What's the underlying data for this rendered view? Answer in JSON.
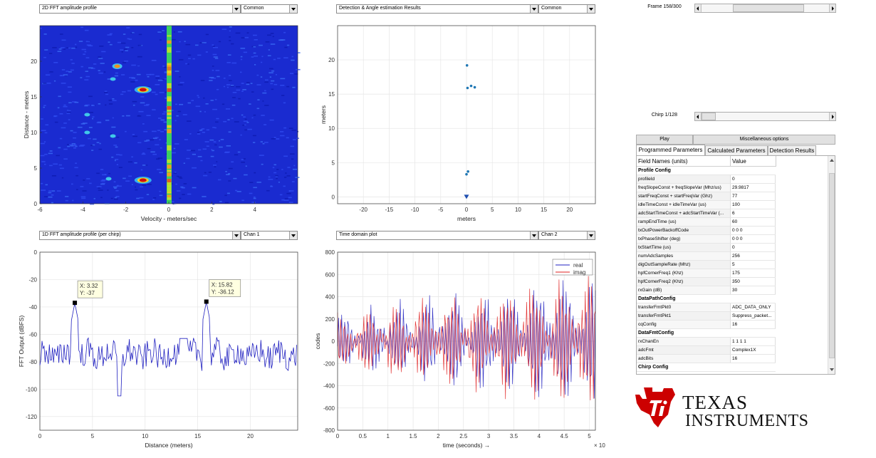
{
  "colors": {
    "accent_red": "#cc0000",
    "line_blue": "#2020c0",
    "line_red": "#e02020",
    "point_blue": "#1f77b4"
  },
  "panels": {
    "top_left": {
      "plot_select": "2D FFT amplitude profile",
      "scale_select": "Common"
    },
    "top_mid": {
      "plot_select": "Detection & Angle estimation Results",
      "scale_select": "Common"
    },
    "bottom_left": {
      "plot_select": "1D FFT amplitude profile (per chirp)",
      "chan_select": "Chan 1"
    },
    "bottom_mid": {
      "plot_select": "Time domain plot",
      "chan_select": "Chan 2"
    }
  },
  "controls": {
    "frame_label": "Frame 158/300",
    "frame_progress": 0.527,
    "chirp_label": "Chirp 1/128",
    "chirp_progress": 0.008,
    "play_button": "Play",
    "misc_button": "Miscellaneous options"
  },
  "tabs": [
    "Programmed Parameters",
    "Calculated Parameters",
    "Detection Results"
  ],
  "params_table": {
    "headers": [
      "Field Names   (units)",
      "Value"
    ],
    "rows": [
      {
        "name": "Profile Config",
        "value": "",
        "section": true
      },
      {
        "name": "profileId",
        "value": "0"
      },
      {
        "name": "freqSlopeConst + freqSlopeVar (Mhz/us)",
        "value": "29.9817"
      },
      {
        "name": "startFreqConst + startFreqVar (Ghz)",
        "value": "77"
      },
      {
        "name": "idleTimeConst + idleTimeVar (us)",
        "value": "100"
      },
      {
        "name": "adcStartTimeConst + adcStartTimeVar (...",
        "value": "6"
      },
      {
        "name": "rampEndTime (us)",
        "value": "60"
      },
      {
        "name": "txOutPowerBackoffCode",
        "value": "0 0 0"
      },
      {
        "name": "txPhaseShifter (deg)",
        "value": "0 0 0"
      },
      {
        "name": "txStartTime (us)",
        "value": "0"
      },
      {
        "name": "numAdcSamples",
        "value": "256"
      },
      {
        "name": "digOutSampleRate (Mhz)",
        "value": "5"
      },
      {
        "name": "hpfCornerFreq1 (Khz)",
        "value": "175"
      },
      {
        "name": "hpfCornerFreq2 (Khz)",
        "value": "350"
      },
      {
        "name": "rxGain (dB)",
        "value": "30"
      },
      {
        "name": "DataPathConfig",
        "value": "",
        "section": true
      },
      {
        "name": "transferFmtPkt0",
        "value": "ADC_DATA_ONLY"
      },
      {
        "name": "transferFmtPkt1",
        "value": "Suppress_packet..."
      },
      {
        "name": "cqConfig",
        "value": "16"
      },
      {
        "name": "DataFmtConfig",
        "value": "",
        "section": true
      },
      {
        "name": "rxChanEn",
        "value": "1 1 1 1"
      },
      {
        "name": "adcFmt",
        "value": "Complex1X"
      },
      {
        "name": "adcBits",
        "value": "16"
      },
      {
        "name": "Chirp Config",
        "value": "",
        "section": true
      }
    ]
  },
  "logo": {
    "line1": "TEXAS",
    "line2": "INSTRUMENTS"
  },
  "chart_data": [
    {
      "type": "heatmap",
      "xlabel": "Velocity - meters/sec",
      "ylabel": "Distance - meters",
      "x_ticks": [
        "-6",
        "-4",
        "-2",
        "0",
        "2",
        "4"
      ],
      "y_ticks": [
        "0",
        "5",
        "10",
        "15",
        "20"
      ],
      "xlim": [
        -6,
        6
      ],
      "ylim": [
        0,
        25
      ],
      "hotspots": [
        {
          "x": -1.2,
          "y": 16,
          "level": "high"
        },
        {
          "x": -1.2,
          "y": 3.3,
          "level": "high"
        },
        {
          "x": -2.4,
          "y": 19.3,
          "level": "medium"
        },
        {
          "x": -2.6,
          "y": 17.5,
          "level": "low"
        },
        {
          "x": -3.8,
          "y": 12.5,
          "level": "low"
        },
        {
          "x": -2.6,
          "y": 9.5,
          "level": "low"
        },
        {
          "x": -3.8,
          "y": 10,
          "level": "low"
        },
        {
          "x": -2.8,
          "y": 3.5,
          "level": "low"
        }
      ]
    },
    {
      "type": "scatter",
      "xlabel": "meters",
      "ylabel": "meters",
      "x_ticks": [
        "-20",
        "-15",
        "-10",
        "-5",
        "0",
        "5",
        "10",
        "15",
        "20"
      ],
      "y_ticks": [
        "0",
        "5",
        "10",
        "15",
        "20"
      ],
      "xlim": [
        -25,
        25
      ],
      "ylim": [
        -1,
        25
      ],
      "points": [
        [
          0.1,
          19.2
        ],
        [
          0.2,
          15.9
        ],
        [
          0.9,
          16.2
        ],
        [
          1.6,
          16.0
        ],
        [
          0.3,
          3.7
        ],
        [
          0.0,
          3.3
        ]
      ],
      "sensor": [
        0,
        0
      ],
      "grid": true
    },
    {
      "type": "line",
      "xlabel": "Distance (meters)",
      "ylabel": "FFT Output (dBFS)",
      "x_ticks": [
        "0",
        "5",
        "10",
        "15",
        "20"
      ],
      "y_ticks": [
        "-120",
        "-100",
        "-80",
        "-60",
        "-40",
        "-20",
        "0"
      ],
      "xlim": [
        0,
        24.5
      ],
      "ylim": [
        -130,
        0
      ],
      "grid": true,
      "datatips": [
        {
          "x": 3.32,
          "y": -37,
          "label_x": "X: 3.32",
          "label_y": "Y: -37"
        },
        {
          "x": 15.82,
          "y": -36.12,
          "label_x": "X: 15.82",
          "label_y": "Y: -36.12"
        }
      ],
      "series": [
        {
          "values_x_step": 0.1,
          "baseline": -75,
          "noise": 10
        }
      ]
    },
    {
      "type": "line",
      "xlabel": "time  (seconds) →",
      "ylabel": "codes",
      "x_ticks": [
        "0",
        "0.5",
        "1",
        "1.5",
        "2",
        "2.5",
        "3",
        "3.5",
        "4",
        "4.5",
        "5"
      ],
      "y_ticks": [
        "-800",
        "-600",
        "-400",
        "-200",
        "0",
        "200",
        "400",
        "600",
        "800"
      ],
      "x_exponent": "× 10⁻⁵",
      "xlim": [
        0,
        5.12
      ],
      "ylim": [
        -800,
        800
      ],
      "grid": true,
      "legend": "top-right",
      "series": [
        {
          "name": "real",
          "color": "#2020c0",
          "amplitude_start": 250,
          "amplitude_end": 600
        },
        {
          "name": "imag",
          "color": "#e02020",
          "amplitude_start": 250,
          "amplitude_end": 600
        }
      ]
    }
  ]
}
